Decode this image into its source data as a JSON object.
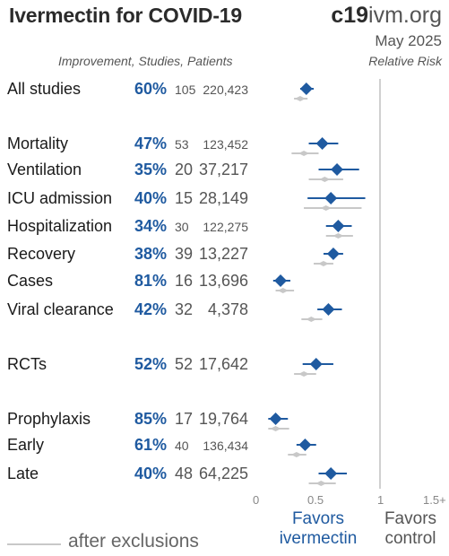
{
  "title": "Ivermectin for COVID-19",
  "brand": {
    "bold": "c19",
    "rest": "ivm.org"
  },
  "date": "May 2025",
  "columns_header": "Improvement, Studies, Patients",
  "risk_header": "Relative Risk",
  "favors_left": [
    "Favors",
    "ivermectin"
  ],
  "favors_right": [
    "Favors",
    "control"
  ],
  "legend_label": "after exclusions",
  "colors": {
    "primary": "#1f5aa0",
    "exclusion": "#c8c8c8"
  },
  "chart_data": {
    "type": "forest",
    "xlabel": "",
    "x_ticks": [
      "0",
      "0.5",
      "1",
      "1.5+"
    ],
    "xlim": [
      0,
      1.5
    ],
    "reference_line": 1,
    "rows": [
      {
        "label": "All studies",
        "improvement": "60%",
        "studies": "105",
        "patients": "220,423",
        "rr": 0.4,
        "ci": [
          0.35,
          0.46
        ],
        "excl_rr": 0.35,
        "excl_ci": [
          0.3,
          0.41
        ]
      },
      {
        "label": "Mortality",
        "improvement": "47%",
        "studies": "53",
        "patients": "123,452",
        "rr": 0.53,
        "ci": [
          0.42,
          0.66
        ],
        "excl_rr": 0.38,
        "excl_ci": [
          0.28,
          0.5
        ]
      },
      {
        "label": "Ventilation",
        "improvement": "35%",
        "studies": "20",
        "patients": "37,217",
        "rr": 0.65,
        "ci": [
          0.5,
          0.83
        ],
        "excl_rr": 0.55,
        "excl_ci": [
          0.42,
          0.7
        ]
      },
      {
        "label": "ICU admission",
        "improvement": "40%",
        "studies": "15",
        "patients": "28,149",
        "rr": 0.6,
        "ci": [
          0.41,
          0.88
        ],
        "excl_rr": 0.56,
        "excl_ci": [
          0.38,
          0.85
        ]
      },
      {
        "label": "Hospitalization",
        "improvement": "34%",
        "studies": "30",
        "patients": "122,275",
        "rr": 0.66,
        "ci": [
          0.56,
          0.77
        ],
        "excl_rr": 0.66,
        "excl_ci": [
          0.56,
          0.78
        ]
      },
      {
        "label": "Recovery",
        "improvement": "38%",
        "studies": "39",
        "patients": "13,227",
        "rr": 0.62,
        "ci": [
          0.54,
          0.7
        ],
        "excl_rr": 0.54,
        "excl_ci": [
          0.46,
          0.62
        ]
      },
      {
        "label": "Cases",
        "improvement": "81%",
        "studies": "16",
        "patients": "13,696",
        "rr": 0.19,
        "ci": [
          0.13,
          0.27
        ],
        "excl_rr": 0.21,
        "excl_ci": [
          0.15,
          0.3
        ]
      },
      {
        "label": "Viral clearance",
        "improvement": "42%",
        "studies": "32",
        "patients": "4,378",
        "rr": 0.58,
        "ci": [
          0.49,
          0.69
        ],
        "excl_rr": 0.44,
        "excl_ci": [
          0.36,
          0.53
        ]
      },
      {
        "label": "RCTs",
        "improvement": "52%",
        "studies": "52",
        "patients": "17,642",
        "rr": 0.48,
        "ci": [
          0.37,
          0.62
        ],
        "excl_rr": 0.38,
        "excl_ci": [
          0.3,
          0.48
        ]
      },
      {
        "label": "Prophylaxis",
        "improvement": "85%",
        "studies": "17",
        "patients": "19,764",
        "rr": 0.15,
        "ci": [
          0.09,
          0.25
        ],
        "excl_rr": 0.15,
        "excl_ci": [
          0.09,
          0.26
        ]
      },
      {
        "label": "Early",
        "improvement": "61%",
        "studies": "40",
        "patients": "136,434",
        "rr": 0.39,
        "ci": [
          0.32,
          0.48
        ],
        "excl_rr": 0.32,
        "excl_ci": [
          0.25,
          0.4
        ]
      },
      {
        "label": "Late",
        "improvement": "40%",
        "studies": "48",
        "patients": "64,225",
        "rr": 0.6,
        "ci": [
          0.5,
          0.73
        ],
        "excl_rr": 0.52,
        "excl_ci": [
          0.42,
          0.64
        ]
      }
    ]
  }
}
